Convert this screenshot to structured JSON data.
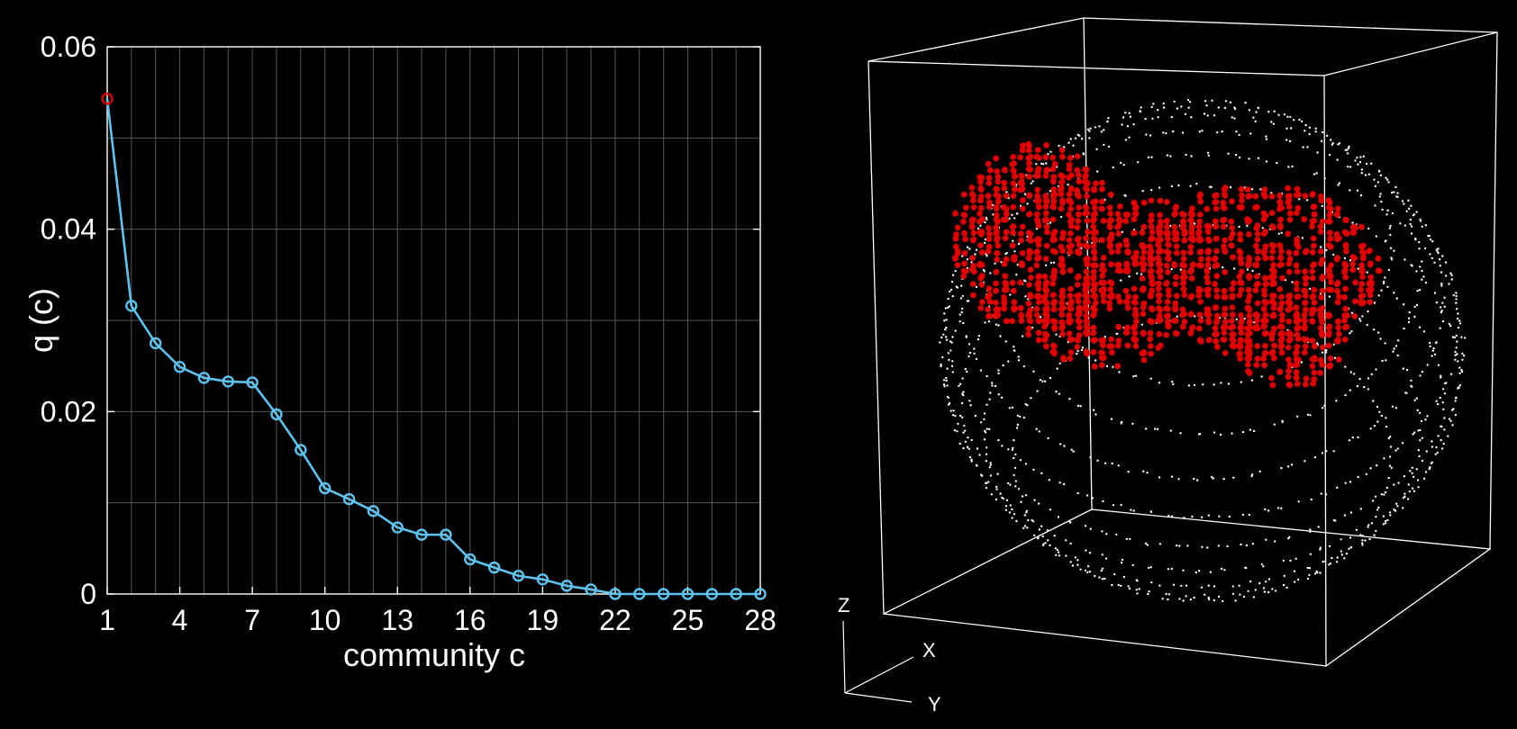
{
  "chart_data": [
    {
      "type": "line",
      "title": "",
      "xlabel": "community c",
      "ylabel": "q (c)",
      "xlim": [
        1,
        28
      ],
      "ylim": [
        0,
        0.06
      ],
      "xticks": [
        "1",
        "4",
        "7",
        "10",
        "13",
        "16",
        "19",
        "22",
        "25",
        "28"
      ],
      "yticks": [
        "0",
        "0.02",
        "0.04",
        "0.06"
      ],
      "grid": true,
      "series": [
        {
          "x": [
            1,
            2,
            3,
            4,
            5,
            6,
            7,
            8,
            9,
            10,
            11,
            12,
            13,
            14,
            15,
            16,
            17,
            18,
            19,
            20,
            21,
            22,
            23,
            24,
            25,
            26,
            27,
            28
          ],
          "values": [
            0.0543,
            0.0316,
            0.0275,
            0.0249,
            0.0237,
            0.0233,
            0.0232,
            0.0197,
            0.0158,
            0.0116,
            0.0104,
            0.0091,
            0.0073,
            0.0065,
            0.0065,
            0.0038,
            0.0029,
            0.002,
            0.0016,
            0.0009,
            0.0005,
            0,
            0,
            0,
            0,
            0,
            0,
            0
          ],
          "color": "#5fc3f0",
          "highlight_index": 0,
          "highlight_color": "#d40000"
        }
      ]
    },
    {
      "type": "scatter",
      "title": "",
      "axis_labels": {
        "z": "Z",
        "x": "X",
        "y": "Y"
      },
      "series": [
        {
          "description": "community voxels",
          "color": "#e00000"
        },
        {
          "description": "brain outline voxels",
          "color": "#ffffff"
        }
      ]
    }
  ]
}
